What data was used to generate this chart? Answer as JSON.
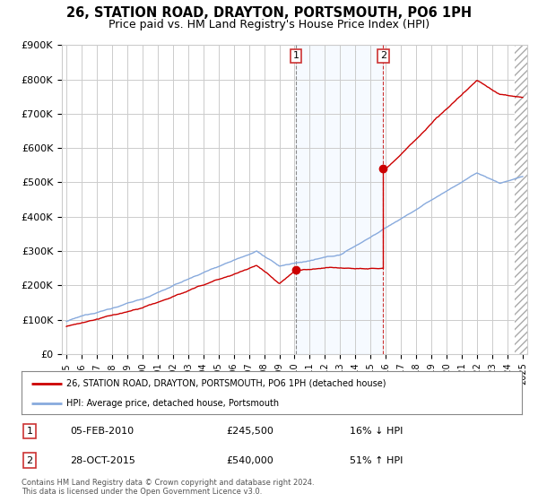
{
  "title": "26, STATION ROAD, DRAYTON, PORTSMOUTH, PO6 1PH",
  "subtitle": "Price paid vs. HM Land Registry's House Price Index (HPI)",
  "ylim": [
    0,
    900000
  ],
  "yticks": [
    0,
    100000,
    200000,
    300000,
    400000,
    500000,
    600000,
    700000,
    800000,
    900000
  ],
  "ytick_labels": [
    "£0",
    "£100K",
    "£200K",
    "£300K",
    "£400K",
    "£500K",
    "£600K",
    "£700K",
    "£800K",
    "£900K"
  ],
  "xlim_start": 1994.7,
  "xlim_end": 2025.3,
  "title_fontsize": 10.5,
  "subtitle_fontsize": 9,
  "line_color_red": "#cc0000",
  "line_color_blue": "#88aadd",
  "marker_color_red": "#cc0000",
  "sale1_x": 2010.09,
  "sale1_y": 245500,
  "sale1_label": "1",
  "sale1_date": "05-FEB-2010",
  "sale1_price": "£245,500",
  "sale1_hpi": "16% ↓ HPI",
  "sale2_x": 2015.83,
  "sale2_y": 540000,
  "sale2_label": "2",
  "sale2_date": "28-OCT-2015",
  "sale2_price": "£540,000",
  "sale2_hpi": "51% ↑ HPI",
  "legend_line1": "26, STATION ROAD, DRAYTON, PORTSMOUTH, PO6 1PH (detached house)",
  "legend_line2": "HPI: Average price, detached house, Portsmouth",
  "footnote": "Contains HM Land Registry data © Crown copyright and database right 2024.\nThis data is licensed under the Open Government Licence v3.0.",
  "bg_color": "#ffffff",
  "plot_bg_color": "#ffffff",
  "grid_color": "#cccccc",
  "shade_color": "#ddeeff"
}
